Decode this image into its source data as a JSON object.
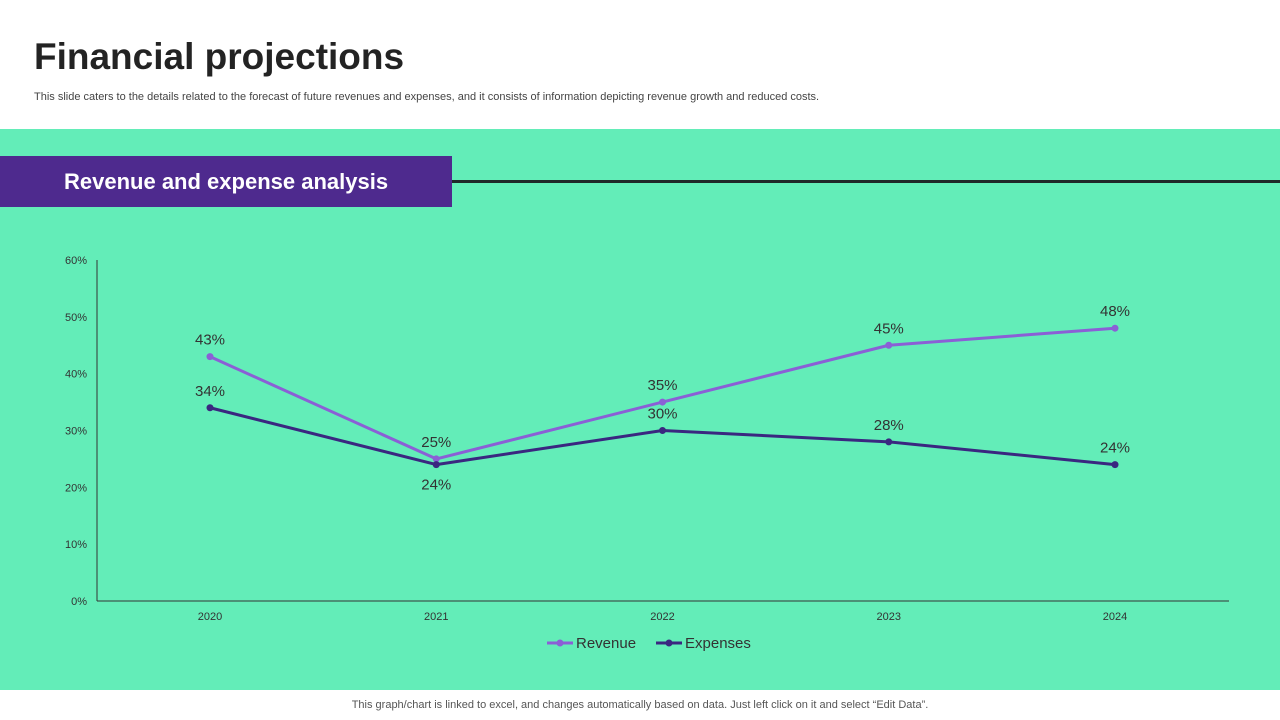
{
  "slide": {
    "title": "Financial projections",
    "subtitle": "This slide caters to the details related to the forecast of future revenues and expenses, and it consists of information depicting revenue growth and reduced costs.",
    "section_title": "Revenue and expense analysis",
    "footer_note": "This graph/chart is linked to excel,  and changes automatically based on data. Just left click on it and select “Edit Data”."
  },
  "colors": {
    "panel_bg": "#63edb8",
    "banner_bg": "#4e2a8e",
    "revenue_line": "#8b5fd6",
    "expenses_line": "#3a2780",
    "axis": "#333333",
    "text": "#333333"
  },
  "chart_data": {
    "type": "line",
    "title": "",
    "xlabel": "",
    "ylabel": "",
    "categories": [
      "2020",
      "2021",
      "2022",
      "2023",
      "2024"
    ],
    "series": [
      {
        "name": "Revenue",
        "values": [
          43,
          25,
          35,
          45,
          48
        ],
        "labels": [
          "43%",
          "25%",
          "35%",
          "45%",
          "48%"
        ]
      },
      {
        "name": "Expenses",
        "values": [
          34,
          24,
          30,
          28,
          24
        ],
        "labels": [
          "34%",
          "24%",
          "30%",
          "28%",
          "24%"
        ]
      }
    ],
    "ylim": [
      0,
      60
    ],
    "yticks": [
      0,
      10,
      20,
      30,
      40,
      50,
      60
    ],
    "ytick_labels": [
      "0%",
      "10%",
      "20%",
      "30%",
      "40%",
      "50%",
      "60%"
    ],
    "grid": false,
    "legend": "bottom-center"
  }
}
